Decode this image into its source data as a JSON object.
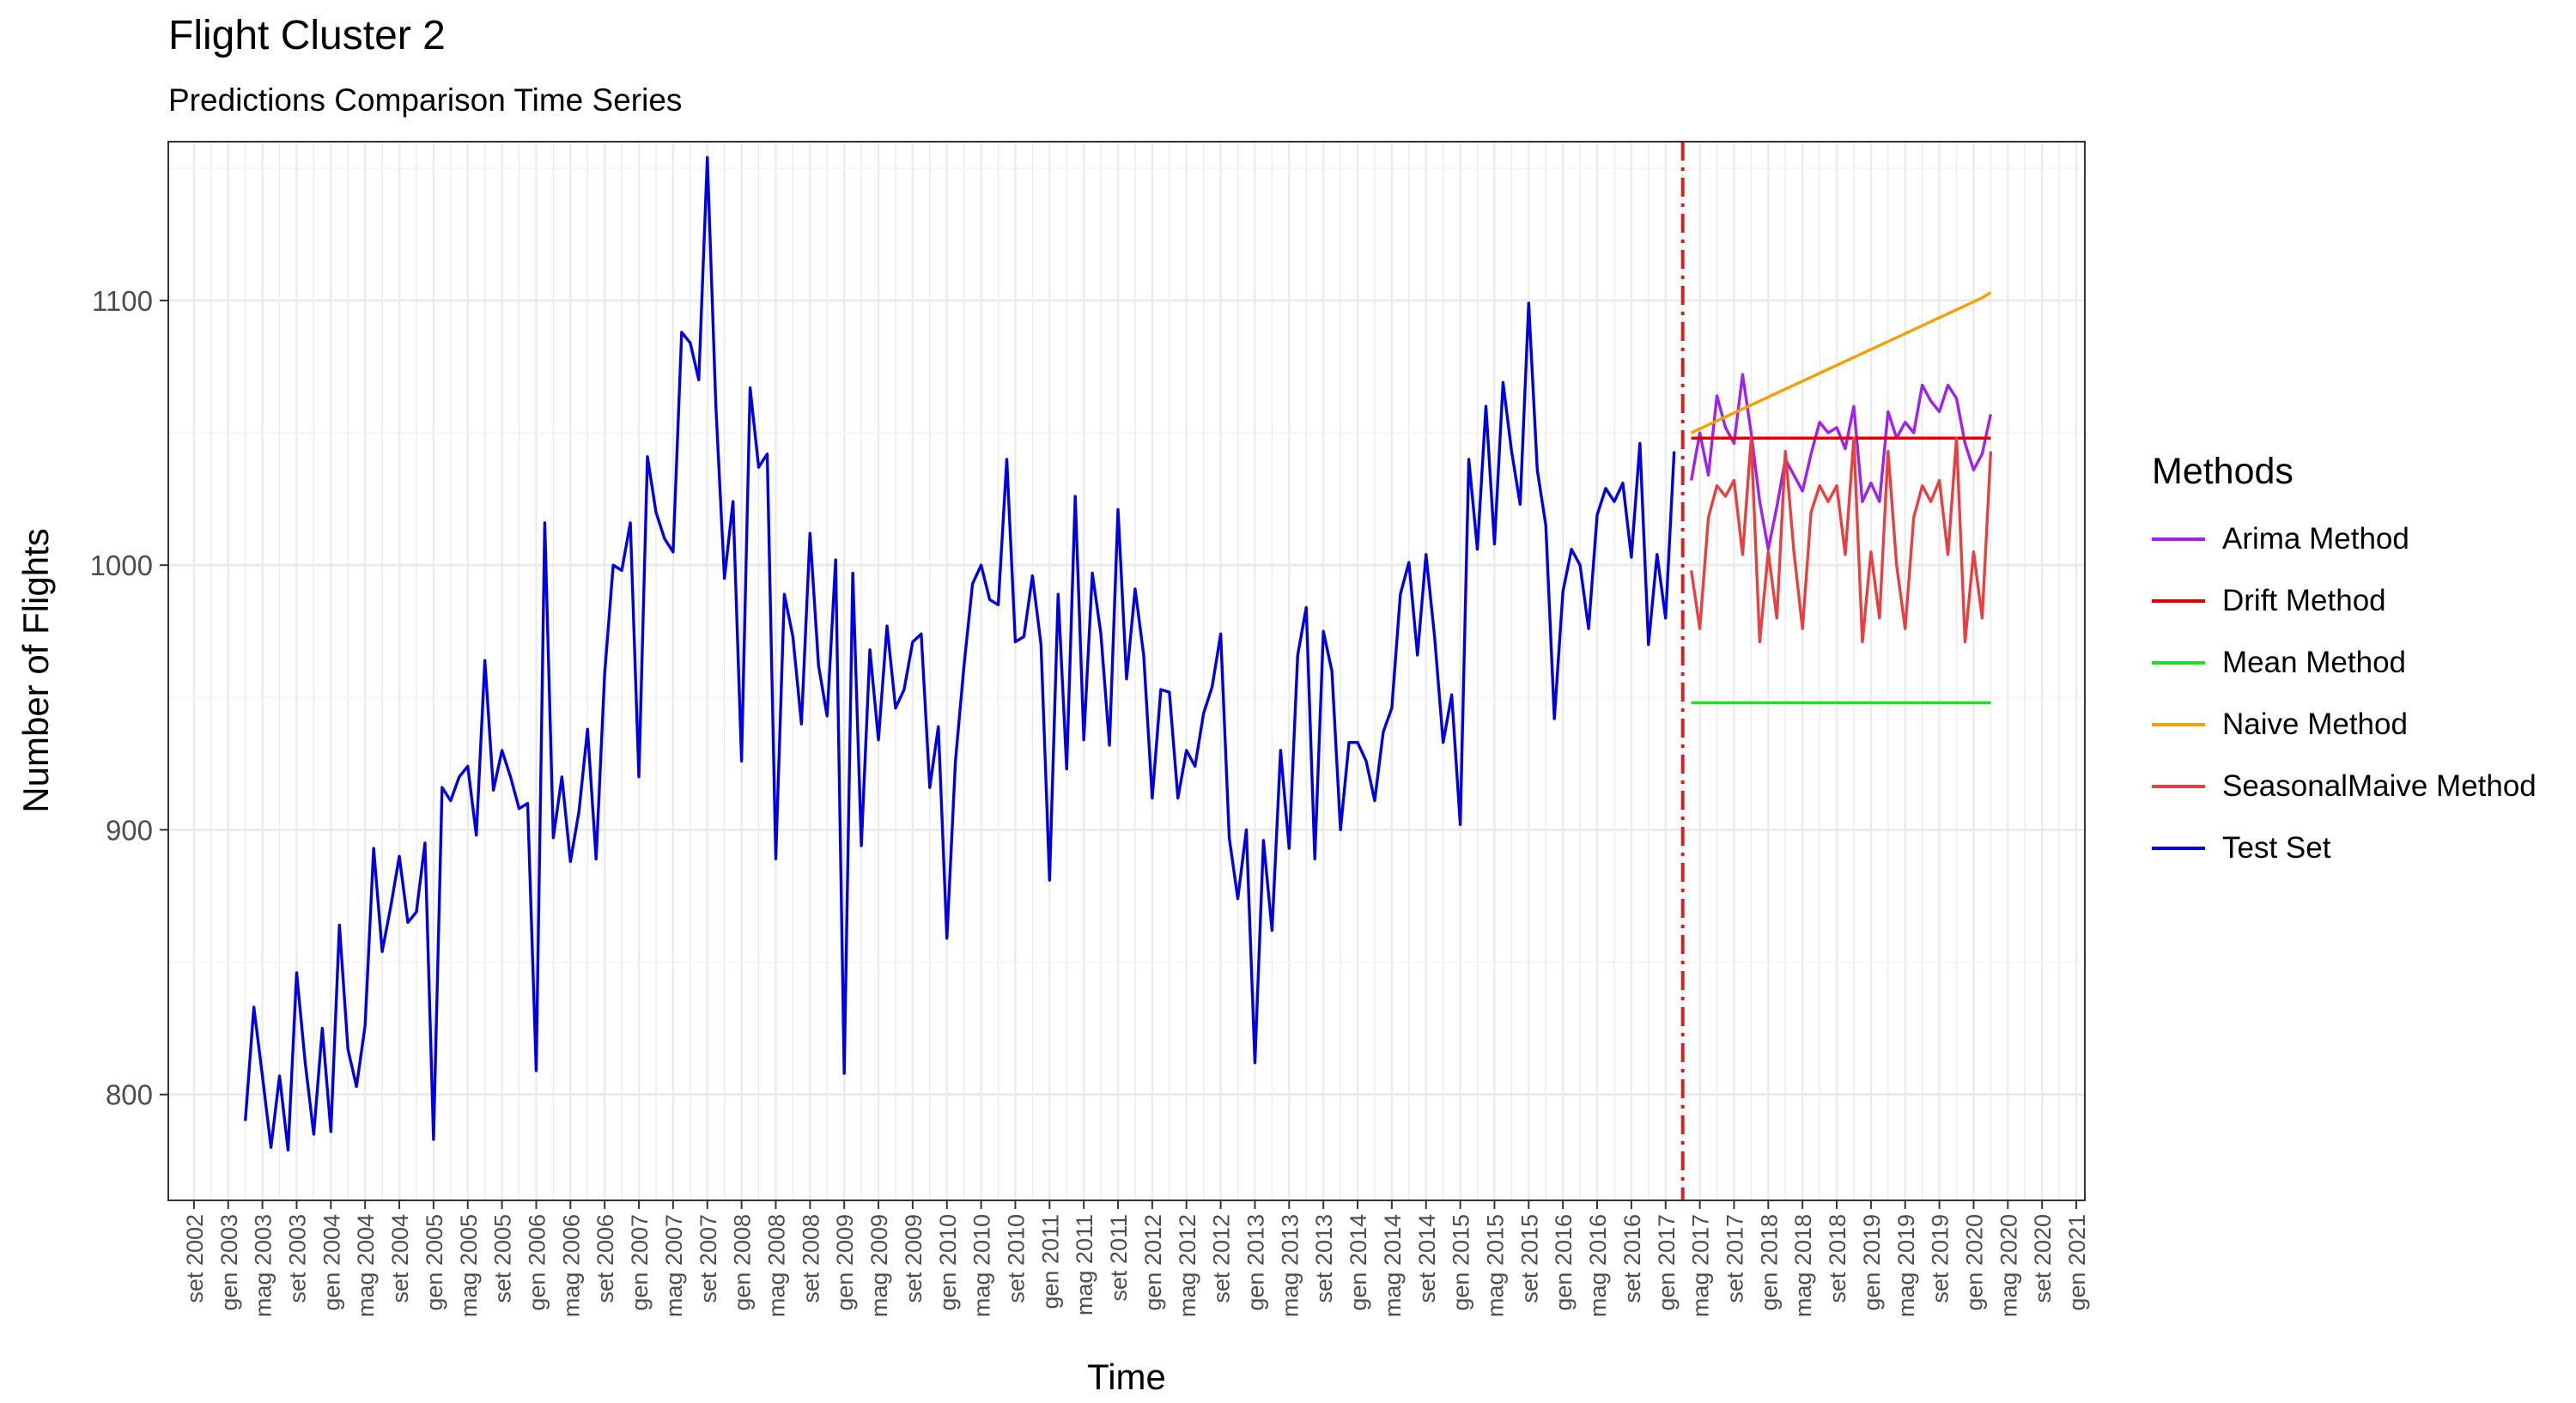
{
  "chart_data": {
    "type": "line",
    "title": "Flight Cluster 2",
    "subtitle": "Predictions Comparison Time Series",
    "xlabel": "Time",
    "ylabel": "Number of Flights",
    "ylim": [
      760,
      1160
    ],
    "yticks": [
      800,
      900,
      1000,
      1100
    ],
    "xlim": [
      "2002-06",
      "2021-02"
    ],
    "x_tick_dates": [
      "2002-09",
      "2003-01",
      "2003-05",
      "2003-09",
      "2004-01",
      "2004-05",
      "2004-09",
      "2005-01",
      "2005-05",
      "2005-09",
      "2006-01",
      "2006-05",
      "2006-09",
      "2007-01",
      "2007-05",
      "2007-09",
      "2008-01",
      "2008-05",
      "2008-09",
      "2009-01",
      "2009-05",
      "2009-09",
      "2010-01",
      "2010-05",
      "2010-09",
      "2011-01",
      "2011-05",
      "2011-09",
      "2012-01",
      "2012-05",
      "2012-09",
      "2013-01",
      "2013-05",
      "2013-09",
      "2014-01",
      "2014-05",
      "2014-09",
      "2015-01",
      "2015-05",
      "2015-09",
      "2016-01",
      "2016-05",
      "2016-09",
      "2017-01",
      "2017-05",
      "2017-09",
      "2018-01",
      "2018-05",
      "2018-09",
      "2019-01",
      "2019-05",
      "2019-09",
      "2020-01",
      "2020-05",
      "2020-09",
      "2021-01"
    ],
    "x_tick_labels": [
      "set 2002",
      "gen 2003",
      "mag 2003",
      "set 2003",
      "gen 2004",
      "mag 2004",
      "set 2004",
      "gen 2005",
      "mag 2005",
      "set 2005",
      "gen 2006",
      "mag 2006",
      "set 2006",
      "gen 2007",
      "mag 2007",
      "set 2007",
      "gen 2008",
      "mag 2008",
      "set 2008",
      "gen 2009",
      "mag 2009",
      "set 2009",
      "gen 2010",
      "mag 2010",
      "set 2010",
      "gen 2011",
      "mag 2011",
      "set 2011",
      "gen 2012",
      "mag 2012",
      "set 2012",
      "gen 2013",
      "mag 2013",
      "set 2013",
      "gen 2014",
      "mag 2014",
      "set 2014",
      "gen 2015",
      "mag 2015",
      "set 2015",
      "gen 2016",
      "mag 2016",
      "set 2016",
      "gen 2017",
      "mag 2017",
      "set 2017",
      "gen 2018",
      "mag 2018",
      "set 2018",
      "gen 2019",
      "mag 2019",
      "set 2019",
      "gen 2020",
      "mag 2020",
      "set 2020",
      "gen 2021"
    ],
    "grid": true,
    "vline": {
      "x": "2017-03",
      "color": "#d62020",
      "style": "dash-dot"
    },
    "legend": {
      "title": "Methods",
      "position": "right"
    },
    "series": [
      {
        "name": "Arima Method",
        "color": "#a020f0",
        "start": "2017-04",
        "values": [
          1032,
          1050,
          1034,
          1064,
          1052,
          1046,
          1072,
          1050,
          1024,
          1006,
          1022,
          1040,
          1034,
          1028,
          1042,
          1054,
          1050,
          1052,
          1044,
          1060,
          1024,
          1031,
          1024,
          1058,
          1048,
          1054,
          1050,
          1068,
          1062,
          1058,
          1068,
          1063,
          1046,
          1036,
          1042,
          1057
        ]
      },
      {
        "name": "Drift Method",
        "color": "#e00000",
        "start": "2017-04",
        "values": [
          1048,
          1048,
          1048,
          1048,
          1048,
          1048,
          1048,
          1048,
          1048,
          1048,
          1048,
          1048,
          1048,
          1048,
          1048,
          1048,
          1048,
          1048,
          1048,
          1048,
          1048,
          1048,
          1048,
          1048,
          1048,
          1048,
          1048,
          1048,
          1048,
          1048,
          1048,
          1048,
          1048,
          1048,
          1048,
          1048
        ]
      },
      {
        "name": "Mean Method",
        "color": "#22dd22",
        "start": "2017-04",
        "values": [
          948,
          948,
          948,
          948,
          948,
          948,
          948,
          948,
          948,
          948,
          948,
          948,
          948,
          948,
          948,
          948,
          948,
          948,
          948,
          948,
          948,
          948,
          948,
          948,
          948,
          948,
          948,
          948,
          948,
          948,
          948,
          948,
          948,
          948,
          948,
          948
        ]
      },
      {
        "name": "Naive Method",
        "color": "#f5a000",
        "start": "2017-04",
        "values": [
          1050,
          1051.5,
          1053,
          1054.5,
          1056,
          1057.5,
          1059,
          1060.5,
          1062,
          1063.5,
          1065,
          1066.5,
          1068,
          1069.5,
          1071,
          1072.5,
          1074,
          1075.5,
          1077,
          1078.5,
          1080,
          1081.5,
          1083,
          1084.5,
          1086,
          1087.5,
          1089,
          1090.5,
          1092,
          1093.5,
          1095,
          1096.5,
          1098,
          1099.5,
          1101,
          1103
        ]
      },
      {
        "name": "SeasonalMaive Method",
        "color": "#e84040",
        "start": "2017-04",
        "values": [
          998,
          976,
          1018,
          1030,
          1026,
          1032,
          1004,
          1048,
          971,
          1005,
          980,
          1043,
          1005,
          976,
          1020,
          1030,
          1024,
          1030,
          1004,
          1048,
          971,
          1005,
          980,
          1043,
          1000,
          976,
          1018,
          1030,
          1024,
          1032,
          1004,
          1048,
          971,
          1005,
          980,
          1043
        ]
      },
      {
        "name": "Test Set",
        "color": "#0000e6",
        "start": "2003-03",
        "values": [
          790,
          833,
          807,
          780,
          807,
          779,
          846,
          812,
          785,
          825,
          786,
          864,
          817,
          803,
          826,
          893,
          854,
          871,
          890,
          865,
          869,
          895,
          783,
          916,
          911,
          920,
          924,
          898,
          964,
          915,
          930,
          920,
          908,
          910,
          809,
          1016,
          897,
          920,
          888,
          907,
          938,
          889,
          959,
          1000,
          998,
          1016,
          920,
          1041,
          1020,
          1010,
          1005,
          1088,
          1084,
          1070,
          1154,
          1060,
          995,
          1024,
          926,
          1067,
          1037,
          1042,
          889,
          989,
          973,
          940,
          1012,
          962,
          943,
          1002,
          808,
          997,
          894,
          968,
          934,
          977,
          946,
          953,
          971,
          974,
          916,
          939,
          859,
          926,
          962,
          993,
          1000,
          987,
          985,
          1040,
          971,
          973,
          996,
          970,
          881,
          989,
          923,
          1026,
          934,
          997,
          974,
          932,
          1021,
          957,
          991,
          966,
          912,
          953,
          952,
          912,
          930,
          924,
          944,
          954,
          974,
          897,
          874,
          900,
          812,
          896,
          862,
          930,
          893,
          966,
          984,
          889,
          975,
          960,
          900,
          933,
          933,
          926,
          911,
          937,
          946,
          989,
          1001,
          966,
          1004,
          973,
          933,
          951,
          902,
          1040,
          1006,
          1060,
          1008,
          1069,
          1043,
          1023,
          1099,
          1036,
          1015,
          942,
          990,
          1006,
          1000,
          976,
          1019,
          1029,
          1024,
          1031,
          1003,
          1046,
          970,
          1004,
          980,
          1043
        ]
      }
    ]
  }
}
